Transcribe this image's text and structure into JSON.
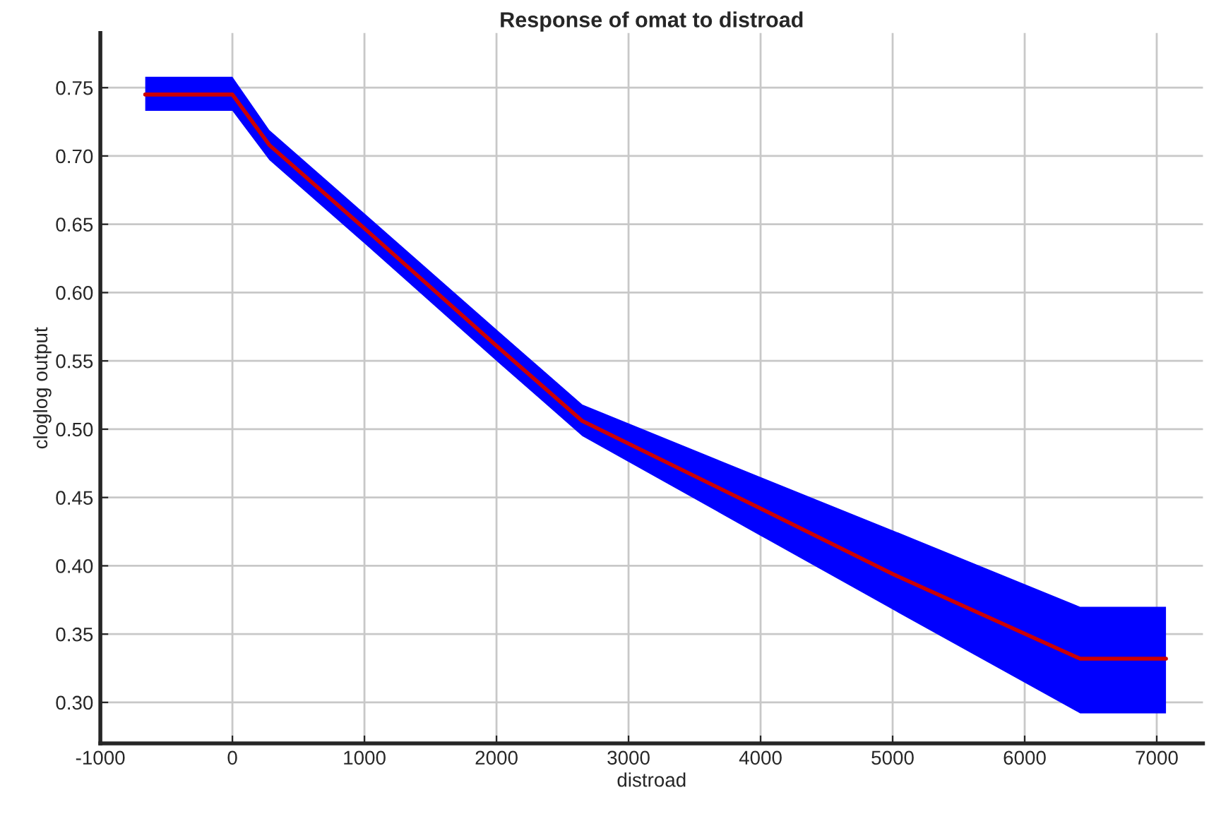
{
  "chart_data": {
    "type": "line",
    "title": "Response of omat to distroad",
    "xlabel": "distroad",
    "ylabel": "cloglog output",
    "x": [
      -660,
      0,
      280,
      1000,
      2000,
      2650,
      4000,
      5000,
      6420,
      7070
    ],
    "series": [
      {
        "color": "#cc0000",
        "values": [
          0.745,
          0.745,
          0.708,
          0.647,
          0.561,
          0.506,
          0.442,
          0.394,
          0.332,
          0.332
        ],
        "lower": [
          0.733,
          0.733,
          0.697,
          0.636,
          0.55,
          0.495,
          0.422,
          0.368,
          0.292,
          0.292
        ],
        "upper": [
          0.758,
          0.758,
          0.719,
          0.658,
          0.573,
          0.518,
          0.465,
          0.426,
          0.37,
          0.37
        ]
      }
    ],
    "xlim": [
      -1000,
      7350
    ],
    "ylim": [
      0.27,
      0.79
    ],
    "xticks": [
      -1000,
      0,
      1000,
      2000,
      3000,
      4000,
      5000,
      6000,
      7000
    ],
    "yticks": [
      {
        "value": 0.3,
        "label": "0.30"
      },
      {
        "value": 0.35,
        "label": "0.35"
      },
      {
        "value": 0.4,
        "label": "0.40"
      },
      {
        "value": 0.45,
        "label": "0.45"
      },
      {
        "value": 0.5,
        "label": "0.50"
      },
      {
        "value": 0.55,
        "label": "0.55"
      },
      {
        "value": 0.6,
        "label": "0.60"
      },
      {
        "value": 0.65,
        "label": "0.65"
      },
      {
        "value": 0.7,
        "label": "0.70"
      },
      {
        "value": 0.75,
        "label": "0.75"
      }
    ],
    "grid": true,
    "line_style": "solid"
  }
}
